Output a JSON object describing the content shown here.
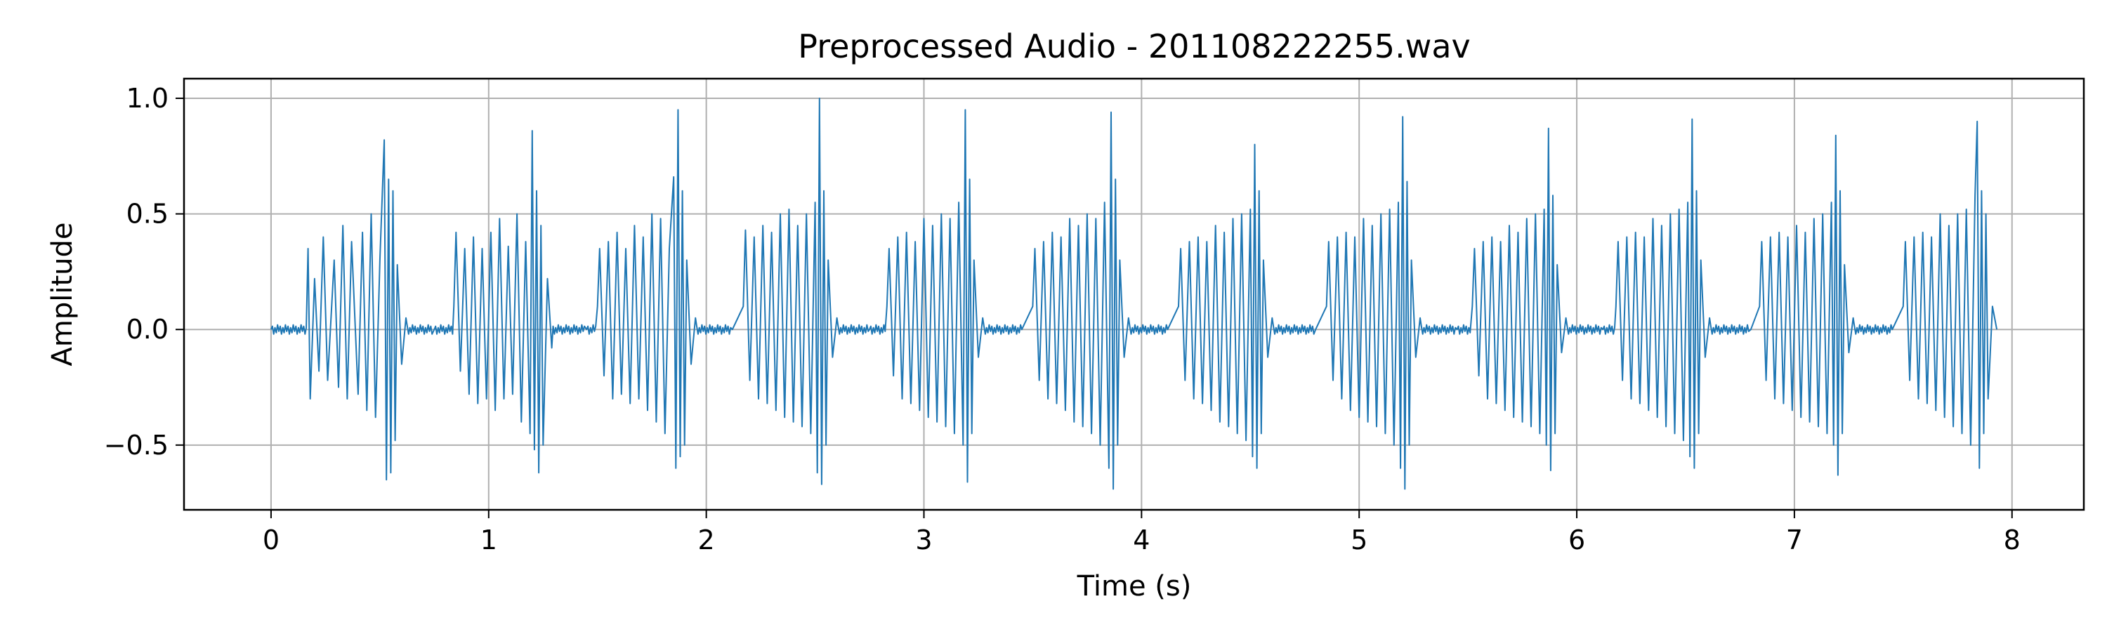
{
  "chart_data": {
    "type": "line",
    "title": "Preprocessed Audio - 201108222255.wav",
    "xlabel": "Time (s)",
    "ylabel": "Amplitude",
    "xlim": [
      -0.4,
      8.33
    ],
    "ylim": [
      -0.78,
      1.085
    ],
    "x_ticks": [
      0,
      1,
      2,
      3,
      4,
      5,
      6,
      7,
      8
    ],
    "x_tick_labels": [
      "0",
      "1",
      "2",
      "3",
      "4",
      "5",
      "6",
      "7",
      "8"
    ],
    "y_ticks": [
      -0.5,
      0.0,
      0.5,
      1.0
    ],
    "y_tick_labels": [
      "−0.5",
      "0.0",
      "0.5",
      "1.0"
    ],
    "grid": true,
    "line_color": "#1f77b4",
    "series": [
      {
        "x": [
          0.0,
          0.17,
          0.18,
          0.2,
          0.22,
          0.24,
          0.26,
          0.29,
          0.31,
          0.33,
          0.35,
          0.37,
          0.4,
          0.42,
          0.44,
          0.46,
          0.48,
          0.5,
          0.52,
          0.53,
          0.54,
          0.55,
          0.56,
          0.57,
          0.58,
          0.6,
          0.62,
          0.75,
          0.84,
          0.85,
          0.87,
          0.89,
          0.91,
          0.93,
          0.95,
          0.97,
          0.99,
          1.01,
          1.03,
          1.05,
          1.07,
          1.09,
          1.11,
          1.13,
          1.15,
          1.17,
          1.19,
          1.2,
          1.21,
          1.22,
          1.23,
          1.24,
          1.25,
          1.27,
          1.29,
          1.45,
          1.5,
          1.51,
          1.53,
          1.55,
          1.57,
          1.59,
          1.61,
          1.63,
          1.65,
          1.67,
          1.69,
          1.71,
          1.73,
          1.75,
          1.77,
          1.79,
          1.81,
          1.83,
          1.85,
          1.86,
          1.87,
          1.88,
          1.89,
          1.9,
          1.91,
          1.93,
          1.95,
          2.12,
          2.17,
          2.18,
          2.2,
          2.22,
          2.24,
          2.26,
          2.28,
          2.3,
          2.32,
          2.34,
          2.36,
          2.38,
          2.4,
          2.42,
          2.44,
          2.46,
          2.48,
          2.5,
          2.51,
          2.52,
          2.53,
          2.54,
          2.55,
          2.56,
          2.58,
          2.6,
          2.75,
          2.83,
          2.84,
          2.86,
          2.88,
          2.9,
          2.92,
          2.94,
          2.96,
          2.98,
          3.0,
          3.02,
          3.04,
          3.06,
          3.08,
          3.1,
          3.12,
          3.14,
          3.16,
          3.18,
          3.19,
          3.2,
          3.21,
          3.22,
          3.23,
          3.25,
          3.27,
          3.45,
          3.5,
          3.51,
          3.53,
          3.55,
          3.57,
          3.59,
          3.61,
          3.63,
          3.65,
          3.67,
          3.69,
          3.71,
          3.73,
          3.75,
          3.77,
          3.79,
          3.81,
          3.83,
          3.85,
          3.86,
          3.87,
          3.88,
          3.89,
          3.9,
          3.92,
          3.94,
          4.12,
          4.17,
          4.18,
          4.2,
          4.22,
          4.24,
          4.26,
          4.28,
          4.3,
          4.32,
          4.34,
          4.36,
          4.38,
          4.4,
          4.42,
          4.44,
          4.46,
          4.48,
          4.5,
          4.51,
          4.52,
          4.53,
          4.54,
          4.55,
          4.56,
          4.58,
          4.6,
          4.8,
          4.85,
          4.86,
          4.88,
          4.9,
          4.92,
          4.94,
          4.96,
          4.98,
          5.0,
          5.02,
          5.04,
          5.06,
          5.08,
          5.1,
          5.12,
          5.14,
          5.16,
          5.18,
          5.19,
          5.2,
          5.21,
          5.22,
          5.23,
          5.24,
          5.26,
          5.28,
          5.45,
          5.52,
          5.53,
          5.55,
          5.57,
          5.59,
          5.61,
          5.63,
          5.65,
          5.67,
          5.69,
          5.71,
          5.73,
          5.75,
          5.77,
          5.79,
          5.81,
          5.83,
          5.85,
          5.86,
          5.87,
          5.88,
          5.89,
          5.9,
          5.91,
          5.93,
          5.95,
          6.12,
          6.18,
          6.19,
          6.21,
          6.23,
          6.25,
          6.27,
          6.29,
          6.31,
          6.33,
          6.35,
          6.37,
          6.39,
          6.41,
          6.43,
          6.45,
          6.47,
          6.49,
          6.51,
          6.52,
          6.53,
          6.54,
          6.55,
          6.56,
          6.57,
          6.59,
          6.61,
          6.8,
          6.84,
          6.85,
          6.87,
          6.89,
          6.91,
          6.93,
          6.95,
          6.97,
          6.99,
          7.01,
          7.03,
          7.05,
          7.07,
          7.09,
          7.11,
          7.13,
          7.15,
          7.17,
          7.18,
          7.19,
          7.2,
          7.21,
          7.22,
          7.23,
          7.25,
          7.27,
          7.45,
          7.5,
          7.51,
          7.53,
          7.55,
          7.57,
          7.59,
          7.61,
          7.63,
          7.65,
          7.67,
          7.69,
          7.71,
          7.73,
          7.75,
          7.77,
          7.79,
          7.81,
          7.83,
          7.84,
          7.85,
          7.86,
          7.87,
          7.88,
          7.89,
          7.91,
          7.93
        ],
        "y": [
          0.0,
          0.35,
          -0.3,
          0.22,
          -0.18,
          0.4,
          -0.22,
          0.3,
          -0.25,
          0.45,
          -0.3,
          0.38,
          -0.28,
          0.42,
          -0.35,
          0.5,
          -0.38,
          0.3,
          0.82,
          -0.65,
          0.65,
          -0.62,
          0.6,
          -0.48,
          0.28,
          -0.15,
          0.05,
          0.0,
          0.1,
          0.42,
          -0.18,
          0.35,
          -0.28,
          0.4,
          -0.32,
          0.35,
          -0.3,
          0.42,
          -0.35,
          0.48,
          -0.3,
          0.36,
          -0.28,
          0.5,
          -0.4,
          0.38,
          -0.45,
          0.86,
          -0.52,
          0.6,
          -0.62,
          0.45,
          -0.5,
          0.22,
          -0.08,
          0.0,
          0.1,
          0.35,
          -0.2,
          0.38,
          -0.3,
          0.42,
          -0.28,
          0.35,
          -0.32,
          0.45,
          -0.3,
          0.4,
          -0.35,
          0.5,
          -0.4,
          0.48,
          -0.45,
          0.35,
          0.66,
          -0.6,
          0.95,
          -0.55,
          0.6,
          -0.5,
          0.3,
          -0.15,
          0.05,
          0.0,
          0.1,
          0.43,
          -0.22,
          0.4,
          -0.3,
          0.45,
          -0.32,
          0.42,
          -0.35,
          0.5,
          -0.38,
          0.52,
          -0.4,
          0.45,
          -0.42,
          0.5,
          -0.45,
          0.55,
          -0.62,
          1.0,
          -0.67,
          0.6,
          -0.5,
          0.3,
          -0.12,
          0.05,
          0.0,
          0.1,
          0.35,
          -0.2,
          0.4,
          -0.3,
          0.42,
          -0.32,
          0.38,
          -0.35,
          0.48,
          -0.38,
          0.45,
          -0.4,
          0.5,
          -0.42,
          0.48,
          -0.45,
          0.55,
          -0.5,
          0.95,
          -0.66,
          0.65,
          -0.45,
          0.3,
          -0.12,
          0.05,
          0.0,
          0.1,
          0.35,
          -0.22,
          0.38,
          -0.3,
          0.42,
          -0.32,
          0.4,
          -0.35,
          0.48,
          -0.4,
          0.45,
          -0.42,
          0.5,
          -0.45,
          0.48,
          -0.5,
          0.55,
          -0.6,
          0.94,
          -0.69,
          0.65,
          -0.5,
          0.3,
          -0.12,
          0.05,
          0.0,
          0.1,
          0.35,
          -0.22,
          0.38,
          -0.3,
          0.4,
          -0.32,
          0.38,
          -0.35,
          0.45,
          -0.4,
          0.42,
          -0.42,
          0.48,
          -0.45,
          0.5,
          -0.48,
          0.52,
          -0.55,
          0.8,
          -0.6,
          0.6,
          -0.45,
          0.3,
          -0.12,
          0.05,
          0.0,
          0.1,
          0.38,
          -0.22,
          0.4,
          -0.3,
          0.42,
          -0.35,
          0.4,
          -0.38,
          0.48,
          -0.4,
          0.45,
          -0.42,
          0.5,
          -0.45,
          0.52,
          -0.5,
          0.55,
          -0.6,
          0.92,
          -0.69,
          0.64,
          -0.5,
          0.3,
          -0.12,
          0.05,
          0.0,
          0.1,
          0.35,
          -0.2,
          0.38,
          -0.3,
          0.4,
          -0.32,
          0.38,
          -0.35,
          0.45,
          -0.38,
          0.42,
          -0.4,
          0.48,
          -0.42,
          0.5,
          -0.45,
          0.52,
          -0.5,
          0.87,
          -0.61,
          0.58,
          -0.45,
          0.28,
          -0.1,
          0.05,
          0.0,
          0.1,
          0.38,
          -0.22,
          0.4,
          -0.3,
          0.42,
          -0.32,
          0.4,
          -0.35,
          0.48,
          -0.38,
          0.45,
          -0.42,
          0.5,
          -0.45,
          0.52,
          -0.48,
          0.55,
          -0.55,
          0.91,
          -0.6,
          0.6,
          -0.45,
          0.3,
          -0.12,
          0.05,
          0.0,
          0.1,
          0.38,
          -0.22,
          0.4,
          -0.3,
          0.42,
          -0.32,
          0.4,
          -0.35,
          0.45,
          -0.38,
          0.42,
          -0.4,
          0.48,
          -0.42,
          0.5,
          -0.45,
          0.55,
          -0.5,
          0.84,
          -0.63,
          0.6,
          -0.45,
          0.28,
          -0.1,
          0.05,
          0.0,
          0.1,
          0.38,
          -0.22,
          0.4,
          -0.3,
          0.42,
          -0.32,
          0.4,
          -0.35,
          0.5,
          -0.38,
          0.45,
          -0.42,
          0.5,
          -0.45,
          0.52,
          -0.5,
          0.58,
          0.9,
          -0.6,
          0.6,
          -0.45,
          0.5,
          -0.3,
          0.1,
          0.0
        ]
      }
    ]
  }
}
